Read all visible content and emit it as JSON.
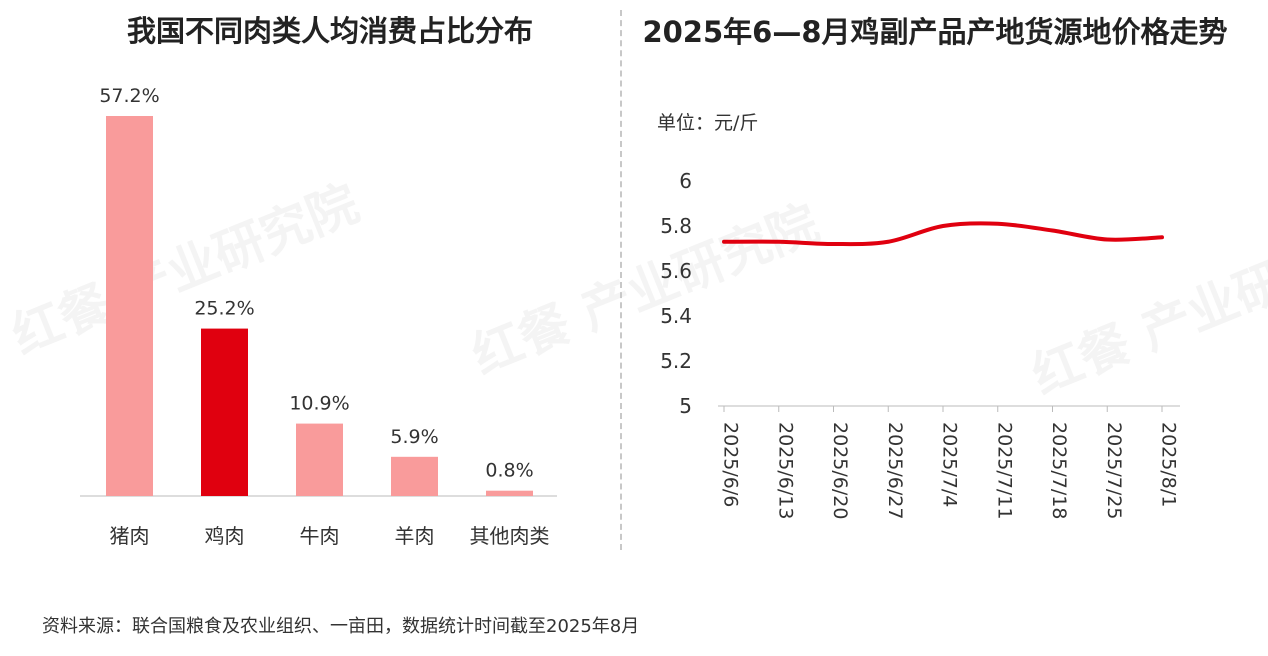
{
  "source_text": "资料来源：联合国粮食及农业组织、一亩田，数据统计时间截至2025年8月",
  "watermark": "红餐 产业研究院",
  "colors": {
    "pink": "#f99b9b",
    "red": "#e0000f",
    "axis": "#bbbbbb"
  },
  "chart_data": [
    {
      "type": "bar",
      "title": "我国不同肉类人均消费占比分布",
      "categories": [
        "猪肉",
        "鸡肉",
        "牛肉",
        "羊肉",
        "其他肉类"
      ],
      "values": [
        57.2,
        25.2,
        10.9,
        5.9,
        0.8
      ],
      "value_labels": [
        "57.2%",
        "25.2%",
        "10.9%",
        "5.9%",
        "0.8%"
      ],
      "highlight_category": "鸡肉",
      "ylim": [
        0,
        57.2
      ],
      "grid": false,
      "legend": "none"
    },
    {
      "type": "line",
      "title": "2025年6—8月鸡副产品产地货源地价格走势",
      "unit_label": "单位：元/斤",
      "x": [
        "2025/6/6",
        "2025/6/13",
        "2025/6/20",
        "2025/6/27",
        "2025/7/4",
        "2025/7/11",
        "2025/7/18",
        "2025/7/25",
        "2025/8/1"
      ],
      "series": [
        {
          "values": [
            5.73,
            5.73,
            5.72,
            5.73,
            5.8,
            5.81,
            5.78,
            5.74,
            5.75
          ]
        }
      ],
      "yticks": [
        "6",
        "5.8",
        "5.6",
        "5.4",
        "5.2",
        "5"
      ],
      "ylim": [
        5,
        6
      ],
      "grid": false,
      "legend": "none"
    }
  ]
}
